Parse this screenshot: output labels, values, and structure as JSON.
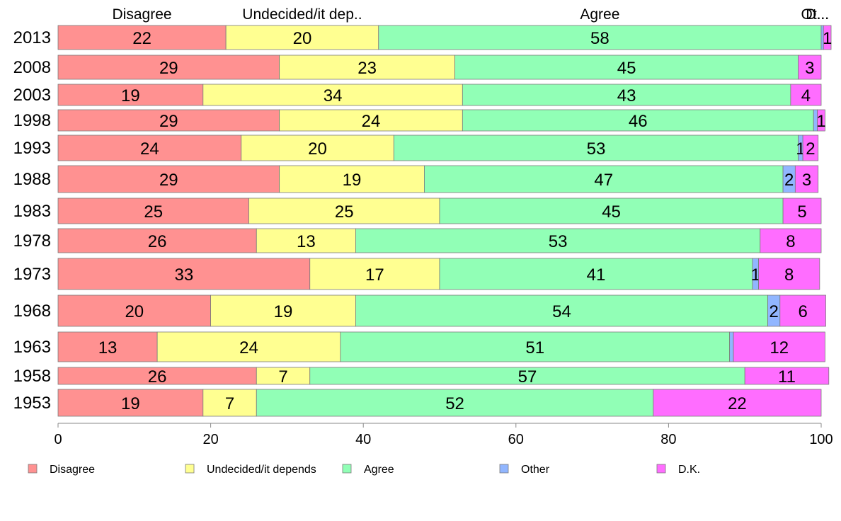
{
  "chart_data": {
    "type": "bar",
    "orientation": "horizontal",
    "stacked": true,
    "xlim": [
      0,
      100
    ],
    "x_ticks": [
      "0",
      "20",
      "40",
      "60",
      "80",
      "100"
    ],
    "categories": [
      "2013",
      "2008",
      "2003",
      "1998",
      "1993",
      "1988",
      "1983",
      "1978",
      "1973",
      "1968",
      "1963",
      "1958",
      "1953"
    ],
    "series": [
      {
        "name": "Disagree",
        "color": "#ff9191",
        "values": [
          22,
          29,
          19,
          29,
          24,
          29,
          25,
          26,
          33,
          20,
          13,
          26,
          19
        ]
      },
      {
        "name": "Undecided/it depends",
        "color": "#ffff91",
        "values": [
          20,
          23,
          34,
          24,
          20,
          19,
          25,
          13,
          17,
          19,
          24,
          7,
          7
        ]
      },
      {
        "name": "Agree",
        "color": "#91ffb6",
        "values": [
          58,
          45,
          43,
          46,
          53,
          47,
          45,
          53,
          41,
          54,
          51,
          57,
          52
        ]
      },
      {
        "name": "Other",
        "color": "#91b6ff",
        "values": [
          0.3,
          0,
          0,
          0.5,
          0.6,
          1.6,
          0,
          0,
          0.8,
          1.6,
          0.5,
          0,
          0
        ]
      },
      {
        "name": "D.K.",
        "color": "#ff6dff",
        "values": [
          1,
          3,
          4,
          1,
          2,
          3,
          5,
          8,
          8,
          6,
          12,
          11,
          22
        ]
      }
    ],
    "segment_labels": [
      [
        "22",
        "20",
        "58",
        "",
        "1"
      ],
      [
        "29",
        "23",
        "45",
        "",
        "3"
      ],
      [
        "19",
        "34",
        "43",
        "",
        "4"
      ],
      [
        "29",
        "24",
        "46",
        "",
        "1"
      ],
      [
        "24",
        "20",
        "53",
        "1",
        "2"
      ],
      [
        "29",
        "19",
        "47",
        "2",
        "3"
      ],
      [
        "25",
        "25",
        "45",
        "",
        "5"
      ],
      [
        "26",
        "13",
        "53",
        "",
        "8"
      ],
      [
        "33",
        "17",
        "41",
        "1",
        "8"
      ],
      [
        "20",
        "19",
        "54",
        "2",
        "6"
      ],
      [
        "13",
        "24",
        "51",
        "",
        "12"
      ],
      [
        "26",
        "7",
        "57",
        "",
        "11"
      ],
      [
        "19",
        "7",
        "52",
        "",
        "22"
      ]
    ],
    "top_labels": [
      "Disagree",
      "Undecided/it dep..",
      "Agree",
      "Ot...",
      "D..."
    ],
    "legend": {
      "position": "bottom",
      "entries": [
        "Disagree",
        "Undecided/it depends",
        "Agree",
        "Other",
        "D.K."
      ]
    },
    "grid": false
  }
}
